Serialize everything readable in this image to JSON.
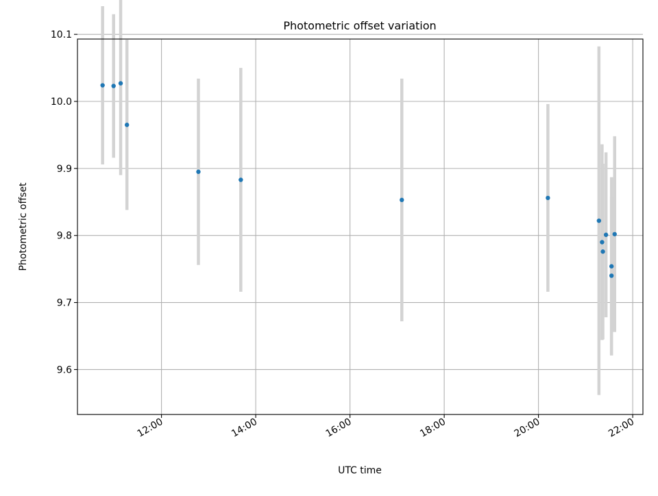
{
  "chart_data": {
    "type": "scatter",
    "title": "Photometric offset variation",
    "xlabel": "UTC time",
    "ylabel": "Photometric offset",
    "xlim": [
      "10:13",
      "22:13"
    ],
    "ylim": [
      9.533,
      10.093
    ],
    "x_ticks": [
      "12:00",
      "14:00",
      "16:00",
      "18:00",
      "20:00",
      "22:00"
    ],
    "y_ticks": [
      "9.6",
      "9.7",
      "9.8",
      "9.9",
      "10.0",
      "10.1"
    ],
    "grid": true,
    "legend": "none",
    "colors": {
      "points": "#1f77b4",
      "errorbars": "#d3d3d3",
      "grid": "#b0b0b0"
    },
    "points": [
      {
        "x": "10:45",
        "y": 10.024,
        "err_low": 0.118,
        "err_high": 0.118
      },
      {
        "x": "10:59",
        "y": 10.023,
        "err_low": 0.107,
        "err_high": 0.107
      },
      {
        "x": "11:08",
        "y": 10.027,
        "err_low": 0.137,
        "err_high": 0.137
      },
      {
        "x": "11:16",
        "y": 9.965,
        "err_low": 0.127,
        "err_high": 0.127
      },
      {
        "x": "12:47",
        "y": 9.895,
        "err_low": 0.139,
        "err_high": 0.139
      },
      {
        "x": "13:41",
        "y": 9.883,
        "err_low": 0.167,
        "err_high": 0.167
      },
      {
        "x": "17:06",
        "y": 9.853,
        "err_low": 0.181,
        "err_high": 0.181
      },
      {
        "x": "20:12",
        "y": 9.856,
        "err_low": 0.14,
        "err_high": 0.14
      },
      {
        "x": "21:17",
        "y": 9.822,
        "err_low": 0.26,
        "err_high": 0.26
      },
      {
        "x": "21:21",
        "y": 9.79,
        "err_low": 0.146,
        "err_high": 0.146
      },
      {
        "x": "21:22",
        "y": 9.776,
        "err_low": 0.131,
        "err_high": 0.131
      },
      {
        "x": "21:26",
        "y": 9.801,
        "err_low": 0.123,
        "err_high": 0.123
      },
      {
        "x": "21:33",
        "y": 9.754,
        "err_low": 0.133,
        "err_high": 0.133
      },
      {
        "x": "21:33",
        "y": 9.74,
        "err_low": 0.118,
        "err_high": 0.118
      },
      {
        "x": "21:37",
        "y": 9.802,
        "err_low": 0.146,
        "err_high": 0.146
      }
    ]
  }
}
